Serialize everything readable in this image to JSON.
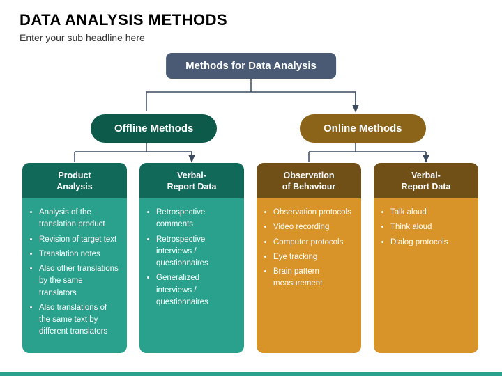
{
  "header": {
    "title": "DATA ANALYSIS METHODS",
    "subtitle": "Enter your sub headline here"
  },
  "root": {
    "label": "Methods for Data Analysis",
    "bg": "#4a5a74"
  },
  "branches": {
    "offline": {
      "label": "Offline Methods",
      "bg": "#0d5a4a"
    },
    "online": {
      "label": "Online Methods",
      "bg": "#8b6319"
    }
  },
  "cards": [
    {
      "head": "Product\nAnalysis",
      "items": [
        "Analysis of the translation product",
        "Revision of target text",
        "Translation notes",
        "Also other translations by the same translators",
        "Also translations of the same text by different translators"
      ]
    },
    {
      "head": "Verbal-\nReport Data",
      "items": [
        "Retrospective comments",
        "Retrospective interviews / questionnaires",
        "Generalized interviews / questionnaires"
      ]
    },
    {
      "head": "Observation\nof Behaviour",
      "items": [
        "Observation protocols",
        "Video recording",
        "Computer protocols",
        "Eye tracking",
        "Brain pattern measurement"
      ]
    },
    {
      "head": "Verbal-\nReport Data",
      "items": [
        "Talk aloud",
        "Think aloud",
        "Dialog protocols"
      ]
    }
  ],
  "colors": {
    "offline_head": "#11695a",
    "offline_body": "#2aa18c",
    "online_head": "#705017",
    "online_body": "#d89329",
    "connector": "#3a4a60",
    "accent": "#2aa18c"
  }
}
